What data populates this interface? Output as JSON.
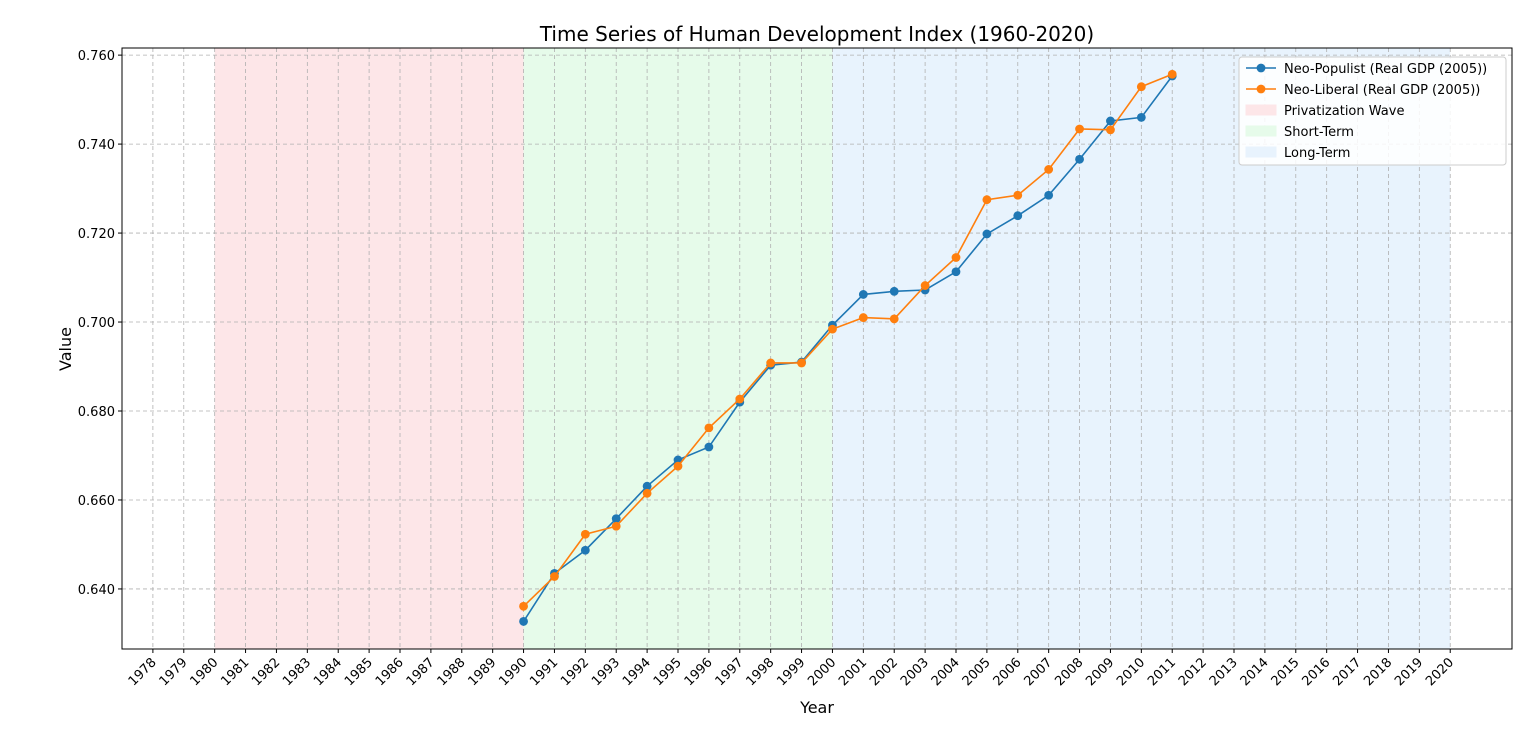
{
  "chart_data": {
    "type": "line",
    "title": "Time Series of Human Development Index (1960-2020)",
    "xlabel": "Year",
    "ylabel": "Value",
    "xlim": [
      1977,
      2022
    ],
    "ylim": [
      0.6265,
      0.7616
    ],
    "x_ticks": [
      1978,
      1979,
      1980,
      1981,
      1982,
      1983,
      1984,
      1985,
      1986,
      1987,
      1988,
      1989,
      1990,
      1991,
      1992,
      1993,
      1994,
      1995,
      1996,
      1997,
      1998,
      1999,
      2000,
      2001,
      2002,
      2003,
      2004,
      2005,
      2006,
      2007,
      2008,
      2009,
      2010,
      2011,
      2012,
      2013,
      2014,
      2015,
      2016,
      2017,
      2018,
      2019,
      2020
    ],
    "y_ticks": [
      0.64,
      0.66,
      0.68,
      0.7,
      0.72,
      0.74,
      0.76
    ],
    "y_tick_labels": [
      "0.640",
      "0.660",
      "0.680",
      "0.700",
      "0.720",
      "0.740",
      "0.760"
    ],
    "grid": true,
    "legend_position": "top-right",
    "x": [
      1990,
      1991,
      1992,
      1993,
      1994,
      1995,
      1996,
      1997,
      1998,
      1999,
      2000,
      2001,
      2002,
      2003,
      2004,
      2005,
      2006,
      2007,
      2008,
      2009,
      2010,
      2011
    ],
    "series": [
      {
        "name": "Neo-Populist (Real GDP (2005))",
        "color": "#1f77b4",
        "values": [
          0.6327,
          0.6435,
          0.6487,
          0.6558,
          0.6631,
          0.669,
          0.6719,
          0.682,
          0.6903,
          0.691,
          0.6993,
          0.7062,
          0.7069,
          0.7072,
          0.7113,
          0.7198,
          0.7239,
          0.7285,
          0.7366,
          0.7452,
          0.746,
          0.7553
        ]
      },
      {
        "name": "Neo-Liberal (Real GDP (2005))",
        "color": "#ff7f0e",
        "values": [
          0.6361,
          0.6428,
          0.6523,
          0.6541,
          0.6615,
          0.6676,
          0.6762,
          0.6827,
          0.6908,
          0.6908,
          0.6984,
          0.701,
          0.7007,
          0.7082,
          0.7145,
          0.7275,
          0.7285,
          0.7343,
          0.7434,
          0.7432,
          0.7529,
          0.7557
        ]
      }
    ],
    "regions": [
      {
        "name": "Privatization Wave",
        "start": 1980,
        "end": 1990,
        "color": "#fde6e8"
      },
      {
        "name": "Short-Term",
        "start": 1990,
        "end": 2000,
        "color": "#e6fbea"
      },
      {
        "name": "Long-Term",
        "start": 2000,
        "end": 2020,
        "color": "#e8f3fd"
      }
    ]
  }
}
